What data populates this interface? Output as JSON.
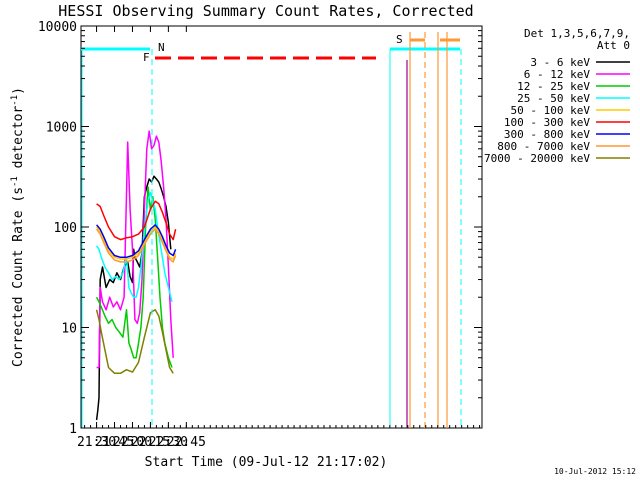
{
  "chart_data": {
    "type": "line",
    "title": "HESSI Observing Summary Count Rates, Corrected",
    "xlabel": "Start Time (09-Jul-12 21:17:02)",
    "ylabel": "Corrected Count Rate (s⁻¹ detector⁻¹)",
    "ylabel_base": "Corrected Count Rate (s",
    "ylabel_sup1": "-1",
    "ylabel_mid": " detector",
    "ylabel_sup2": "-1",
    "ylabel_end": ")",
    "y_scale": "log",
    "xlim": [
      1277,
      1612
    ],
    "ylim": [
      1,
      10000
    ],
    "x_ticks": [
      {
        "v": 1290,
        "label": "21:30"
      },
      {
        "v": 1305,
        "label": "21:45"
      },
      {
        "v": 1320,
        "label": "22:00"
      },
      {
        "v": 1335,
        "label": "22:15"
      },
      {
        "v": 1350,
        "label": "22:30"
      },
      {
        "v": 1365,
        "label": "22:45"
      }
    ],
    "y_ticks": [
      {
        "v": 1,
        "label": "1"
      },
      {
        "v": 10,
        "label": "10"
      },
      {
        "v": 100,
        "label": "100"
      },
      {
        "v": 1000,
        "label": "1000"
      },
      {
        "v": 10000,
        "label": "10000"
      }
    ],
    "legend_header": [
      "Det 1,3,5,6,7,9,",
      "Att 0"
    ],
    "legend_placement": "right",
    "timestamp": "10-Jul-2012 15:12",
    "series": [
      {
        "name": "3 - 6 keV",
        "color": "#000000",
        "points": [
          [
            1290,
            1.2
          ],
          [
            1291,
            1.5
          ],
          [
            1292,
            2
          ],
          [
            1293,
            30
          ],
          [
            1295,
            40
          ],
          [
            1298,
            25
          ],
          [
            1301,
            30
          ],
          [
            1304,
            28
          ],
          [
            1307,
            35
          ],
          [
            1310,
            30
          ],
          [
            1313,
            40
          ],
          [
            1316,
            45
          ],
          [
            1318,
            32
          ],
          [
            1320,
            28
          ],
          [
            1321,
            60
          ],
          [
            1322,
            50
          ],
          [
            1324,
            45
          ],
          [
            1326,
            40
          ],
          [
            1328,
            55
          ],
          [
            1330,
            200
          ],
          [
            1332,
            250
          ],
          [
            1334,
            300
          ],
          [
            1336,
            280
          ],
          [
            1338,
            320
          ],
          [
            1340,
            300
          ],
          [
            1342,
            280
          ],
          [
            1344,
            240
          ],
          [
            1346,
            200
          ],
          [
            1348,
            160
          ],
          [
            1350,
            110
          ],
          [
            1352,
            60
          ]
        ]
      },
      {
        "name": "6 - 12 keV",
        "color": "#ff00ff",
        "points": [
          [
            1290,
            4
          ],
          [
            1292,
            4
          ],
          [
            1293,
            25
          ],
          [
            1295,
            18
          ],
          [
            1298,
            15
          ],
          [
            1301,
            20
          ],
          [
            1304,
            16
          ],
          [
            1307,
            18
          ],
          [
            1310,
            15
          ],
          [
            1313,
            20
          ],
          [
            1316,
            700
          ],
          [
            1318,
            150
          ],
          [
            1320,
            60
          ],
          [
            1322,
            12
          ],
          [
            1324,
            11
          ],
          [
            1326,
            14
          ],
          [
            1328,
            30
          ],
          [
            1330,
            150
          ],
          [
            1332,
            600
          ],
          [
            1334,
            900
          ],
          [
            1336,
            600
          ],
          [
            1338,
            650
          ],
          [
            1340,
            800
          ],
          [
            1342,
            700
          ],
          [
            1344,
            450
          ],
          [
            1346,
            250
          ],
          [
            1348,
            120
          ],
          [
            1350,
            40
          ],
          [
            1352,
            12
          ],
          [
            1354,
            5
          ]
        ]
      },
      {
        "name": "12 - 25 keV",
        "color": "#00cc00",
        "points": [
          [
            1290,
            20
          ],
          [
            1292,
            18
          ],
          [
            1294,
            16
          ],
          [
            1297,
            13
          ],
          [
            1300,
            11
          ],
          [
            1303,
            12
          ],
          [
            1306,
            10
          ],
          [
            1309,
            9
          ],
          [
            1312,
            8
          ],
          [
            1315,
            15
          ],
          [
            1317,
            7
          ],
          [
            1319,
            6
          ],
          [
            1321,
            5
          ],
          [
            1323,
            5
          ],
          [
            1325,
            7
          ],
          [
            1327,
            10
          ],
          [
            1329,
            20
          ],
          [
            1331,
            100
          ],
          [
            1333,
            250
          ],
          [
            1335,
            150
          ],
          [
            1337,
            200
          ],
          [
            1339,
            120
          ],
          [
            1341,
            50
          ],
          [
            1343,
            20
          ],
          [
            1345,
            10
          ],
          [
            1347,
            7
          ],
          [
            1350,
            5
          ],
          [
            1353,
            4
          ]
        ]
      },
      {
        "name": "25 - 50 keV",
        "color": "#00ffff",
        "points": [
          [
            1290,
            65
          ],
          [
            1292,
            60
          ],
          [
            1294,
            50
          ],
          [
            1297,
            40
          ],
          [
            1300,
            35
          ],
          [
            1303,
            30
          ],
          [
            1306,
            32
          ],
          [
            1309,
            30
          ],
          [
            1312,
            35
          ],
          [
            1315,
            50
          ],
          [
            1317,
            25
          ],
          [
            1319,
            22
          ],
          [
            1321,
            20
          ],
          [
            1323,
            20
          ],
          [
            1325,
            25
          ],
          [
            1327,
            40
          ],
          [
            1329,
            70
          ],
          [
            1331,
            120
          ],
          [
            1333,
            180
          ],
          [
            1335,
            220
          ],
          [
            1337,
            180
          ],
          [
            1339,
            150
          ],
          [
            1341,
            100
          ],
          [
            1343,
            70
          ],
          [
            1345,
            50
          ],
          [
            1347,
            35
          ],
          [
            1350,
            25
          ],
          [
            1353,
            18
          ]
        ]
      },
      {
        "name": "50 - 100 keV",
        "color": "#ffcc00",
        "points": [
          [
            1290,
            100
          ],
          [
            1293,
            90
          ],
          [
            1296,
            75
          ],
          [
            1300,
            58
          ],
          [
            1305,
            50
          ],
          [
            1310,
            48
          ],
          [
            1315,
            48
          ],
          [
            1320,
            50
          ],
          [
            1325,
            55
          ],
          [
            1330,
            70
          ],
          [
            1335,
            90
          ],
          [
            1339,
            100
          ],
          [
            1342,
            90
          ],
          [
            1345,
            75
          ],
          [
            1348,
            60
          ],
          [
            1351,
            50
          ],
          [
            1354,
            48
          ],
          [
            1356,
            55
          ]
        ]
      },
      {
        "name": "100 - 300 keV",
        "color": "#ff0000",
        "points": [
          [
            1290,
            170
          ],
          [
            1293,
            160
          ],
          [
            1296,
            130
          ],
          [
            1300,
            100
          ],
          [
            1305,
            80
          ],
          [
            1310,
            75
          ],
          [
            1315,
            78
          ],
          [
            1320,
            80
          ],
          [
            1325,
            85
          ],
          [
            1330,
            100
          ],
          [
            1335,
            150
          ],
          [
            1339,
            180
          ],
          [
            1342,
            170
          ],
          [
            1345,
            140
          ],
          [
            1348,
            110
          ],
          [
            1351,
            85
          ],
          [
            1354,
            75
          ],
          [
            1356,
            95
          ]
        ]
      },
      {
        "name": "300 - 800 keV",
        "color": "#0000ff",
        "points": [
          [
            1290,
            105
          ],
          [
            1293,
            95
          ],
          [
            1296,
            80
          ],
          [
            1300,
            62
          ],
          [
            1305,
            52
          ],
          [
            1310,
            50
          ],
          [
            1315,
            50
          ],
          [
            1320,
            52
          ],
          [
            1325,
            58
          ],
          [
            1330,
            75
          ],
          [
            1335,
            95
          ],
          [
            1339,
            105
          ],
          [
            1342,
            95
          ],
          [
            1345,
            80
          ],
          [
            1348,
            65
          ],
          [
            1351,
            55
          ],
          [
            1354,
            52
          ],
          [
            1356,
            60
          ]
        ]
      },
      {
        "name": "800 - 7000 keV",
        "color": "#ff9933",
        "points": [
          [
            1290,
            95
          ],
          [
            1293,
            85
          ],
          [
            1296,
            70
          ],
          [
            1300,
            55
          ],
          [
            1305,
            47
          ],
          [
            1310,
            45
          ],
          [
            1315,
            45
          ],
          [
            1320,
            47
          ],
          [
            1325,
            52
          ],
          [
            1330,
            67
          ],
          [
            1335,
            85
          ],
          [
            1339,
            95
          ],
          [
            1342,
            85
          ],
          [
            1345,
            70
          ],
          [
            1348,
            58
          ],
          [
            1351,
            48
          ],
          [
            1354,
            45
          ],
          [
            1356,
            52
          ]
        ]
      },
      {
        "name": "7000 - 20000 keV",
        "color": "#808000",
        "points": [
          [
            1290,
            15
          ],
          [
            1292,
            12
          ],
          [
            1294,
            9
          ],
          [
            1297,
            6
          ],
          [
            1300,
            4
          ],
          [
            1305,
            3.5
          ],
          [
            1310,
            3.5
          ],
          [
            1315,
            3.8
          ],
          [
            1320,
            3.6
          ],
          [
            1325,
            4.5
          ],
          [
            1330,
            8
          ],
          [
            1335,
            14
          ],
          [
            1339,
            15
          ],
          [
            1342,
            13
          ],
          [
            1345,
            9
          ],
          [
            1348,
            6
          ],
          [
            1351,
            4
          ],
          [
            1354,
            3.5
          ]
        ]
      }
    ],
    "flags": [
      {
        "label": "N",
        "color": "#00ffff"
      },
      {
        "label": "F",
        "color": "#ff0000"
      },
      {
        "label": "S",
        "color": "#ff9933"
      }
    ]
  }
}
